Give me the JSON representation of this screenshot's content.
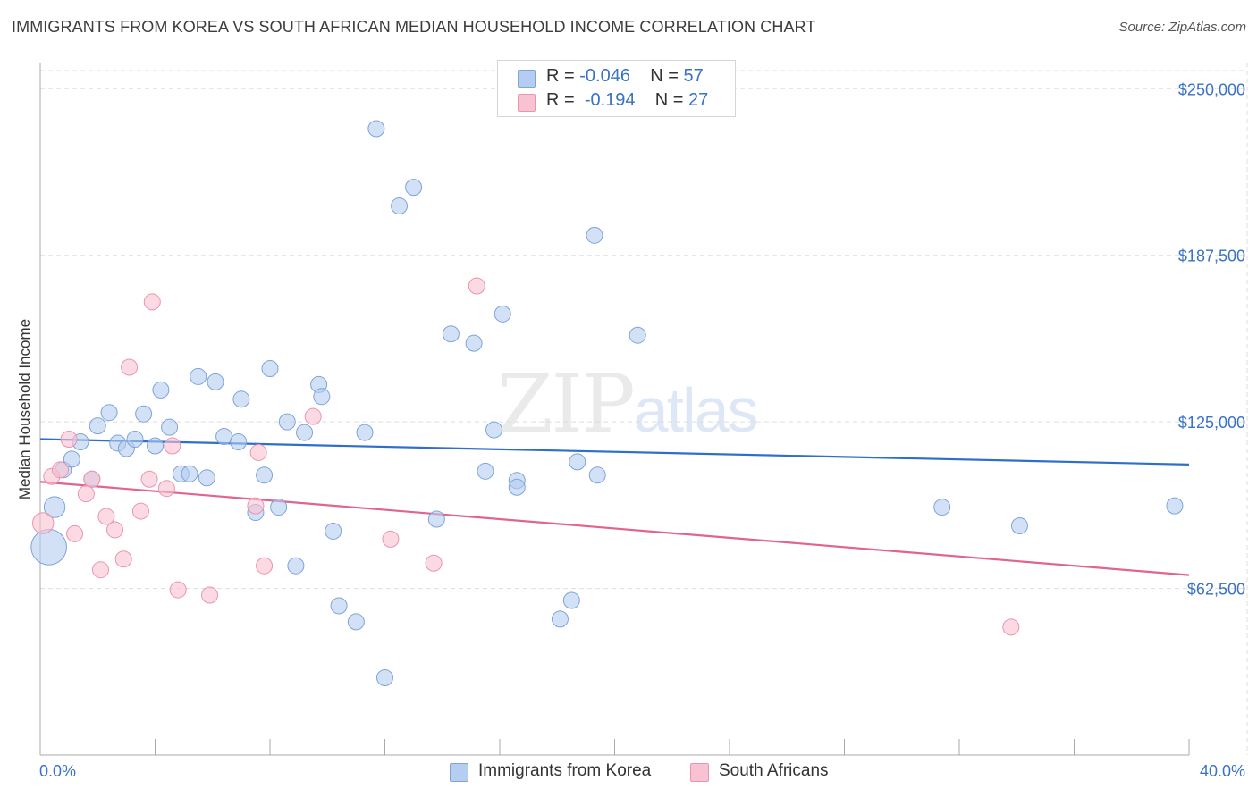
{
  "title": "IMMIGRANTS FROM KOREA VS SOUTH AFRICAN MEDIAN HOUSEHOLD INCOME CORRELATION CHART",
  "source": "Source: ZipAtlas.com",
  "watermark": {
    "zip": "ZIP",
    "atlas": "atlas"
  },
  "legend_top": {
    "rows": [
      {
        "r_label": "R =",
        "r_value": "-0.046",
        "n_label": "N =",
        "n_value": "57"
      },
      {
        "r_label": "R =",
        "r_value": "-0.194",
        "n_label": "N =",
        "n_value": "27"
      }
    ]
  },
  "legend_bottom": {
    "series1": "Immigrants from Korea",
    "series2": "South Africans"
  },
  "colors": {
    "korea_fill": "#b4cdf0",
    "korea_stroke": "#7ea4d8",
    "korea_line": "#2e6fcb",
    "sa_fill": "#f8c2d2",
    "sa_stroke": "#eb94ae",
    "sa_line": "#e0648d",
    "tick_label": "#3a72c4",
    "grid": "#dddddd"
  },
  "chart_data": {
    "type": "scatter",
    "title": "IMMIGRANTS FROM KOREA VS SOUTH AFRICAN MEDIAN HOUSEHOLD INCOME CORRELATION CHART",
    "xlabel": "",
    "ylabel": "Median Household Income",
    "xlim": [
      0,
      40
    ],
    "ylim": [
      0,
      262500
    ],
    "x_tick_labels": [
      "0.0%",
      "40.0%"
    ],
    "y_ticks": [
      62500,
      125000,
      187500,
      250000
    ],
    "y_tick_labels": [
      "$62,500",
      "$125,000",
      "$187,500",
      "$250,000"
    ],
    "grid": true,
    "legend_placement": "bottom",
    "series": [
      {
        "name": "Immigrants from Korea",
        "trend": {
          "x": [
            0,
            40
          ],
          "y": [
            118500,
            109000
          ]
        },
        "points": [
          {
            "x": 0.3,
            "y": 78000,
            "s": 2.2
          },
          {
            "x": 0.5,
            "y": 93000,
            "s": 1.3
          },
          {
            "x": 0.8,
            "y": 107000,
            "s": 1
          },
          {
            "x": 1.1,
            "y": 111000,
            "s": 1
          },
          {
            "x": 1.4,
            "y": 117500,
            "s": 1
          },
          {
            "x": 2.0,
            "y": 123500,
            "s": 1
          },
          {
            "x": 2.4,
            "y": 128500,
            "s": 1
          },
          {
            "x": 1.8,
            "y": 103500,
            "s": 1
          },
          {
            "x": 2.7,
            "y": 117000,
            "s": 1
          },
          {
            "x": 3.0,
            "y": 115000,
            "s": 1
          },
          {
            "x": 3.3,
            "y": 118500,
            "s": 1
          },
          {
            "x": 3.6,
            "y": 128000,
            "s": 1
          },
          {
            "x": 4.0,
            "y": 116000,
            "s": 1
          },
          {
            "x": 4.2,
            "y": 137000,
            "s": 1
          },
          {
            "x": 4.5,
            "y": 123000,
            "s": 1
          },
          {
            "x": 4.9,
            "y": 105500,
            "s": 1
          },
          {
            "x": 5.2,
            "y": 105500,
            "s": 1
          },
          {
            "x": 5.5,
            "y": 142000,
            "s": 1
          },
          {
            "x": 5.8,
            "y": 104000,
            "s": 1
          },
          {
            "x": 6.1,
            "y": 140000,
            "s": 1
          },
          {
            "x": 6.4,
            "y": 119500,
            "s": 1
          },
          {
            "x": 6.9,
            "y": 117500,
            "s": 1
          },
          {
            "x": 7.0,
            "y": 133500,
            "s": 1
          },
          {
            "x": 7.5,
            "y": 91000,
            "s": 1
          },
          {
            "x": 7.8,
            "y": 105000,
            "s": 1
          },
          {
            "x": 8.0,
            "y": 145000,
            "s": 1
          },
          {
            "x": 8.3,
            "y": 93000,
            "s": 1
          },
          {
            "x": 8.6,
            "y": 125000,
            "s": 1
          },
          {
            "x": 8.9,
            "y": 71000,
            "s": 1
          },
          {
            "x": 9.2,
            "y": 121000,
            "s": 1
          },
          {
            "x": 9.7,
            "y": 139000,
            "s": 1
          },
          {
            "x": 9.8,
            "y": 134500,
            "s": 1
          },
          {
            "x": 10.2,
            "y": 84000,
            "s": 1
          },
          {
            "x": 10.4,
            "y": 56000,
            "s": 1
          },
          {
            "x": 11.0,
            "y": 50000,
            "s": 1
          },
          {
            "x": 11.3,
            "y": 121000,
            "s": 1
          },
          {
            "x": 11.7,
            "y": 235000,
            "s": 1
          },
          {
            "x": 12.0,
            "y": 29000,
            "s": 1
          },
          {
            "x": 12.5,
            "y": 206000,
            "s": 1
          },
          {
            "x": 13.0,
            "y": 213000,
            "s": 1
          },
          {
            "x": 13.8,
            "y": 88500,
            "s": 1
          },
          {
            "x": 14.3,
            "y": 158000,
            "s": 1
          },
          {
            "x": 15.1,
            "y": 154500,
            "s": 1
          },
          {
            "x": 15.5,
            "y": 106500,
            "s": 1
          },
          {
            "x": 15.8,
            "y": 122000,
            "s": 1
          },
          {
            "x": 16.1,
            "y": 165500,
            "s": 1
          },
          {
            "x": 16.6,
            "y": 103000,
            "s": 1
          },
          {
            "x": 16.6,
            "y": 100500,
            "s": 1
          },
          {
            "x": 18.1,
            "y": 51000,
            "s": 1
          },
          {
            "x": 18.5,
            "y": 58000,
            "s": 1
          },
          {
            "x": 18.7,
            "y": 110000,
            "s": 1
          },
          {
            "x": 19.3,
            "y": 195000,
            "s": 1
          },
          {
            "x": 19.4,
            "y": 105000,
            "s": 1
          },
          {
            "x": 20.8,
            "y": 157500,
            "s": 1
          },
          {
            "x": 31.4,
            "y": 93000,
            "s": 1
          },
          {
            "x": 34.1,
            "y": 86000,
            "s": 1
          },
          {
            "x": 39.5,
            "y": 93500,
            "s": 1
          }
        ]
      },
      {
        "name": "South Africans",
        "trend": {
          "x": [
            0,
            40
          ],
          "y": [
            102500,
            67500
          ]
        },
        "points": [
          {
            "x": 0.1,
            "y": 87000,
            "s": 1.3
          },
          {
            "x": 0.4,
            "y": 104500,
            "s": 1
          },
          {
            "x": 0.7,
            "y": 107000,
            "s": 1
          },
          {
            "x": 1.0,
            "y": 118500,
            "s": 1
          },
          {
            "x": 1.2,
            "y": 83000,
            "s": 1
          },
          {
            "x": 1.6,
            "y": 98000,
            "s": 1
          },
          {
            "x": 1.8,
            "y": 103500,
            "s": 1
          },
          {
            "x": 2.1,
            "y": 69500,
            "s": 1
          },
          {
            "x": 2.3,
            "y": 89500,
            "s": 1
          },
          {
            "x": 2.6,
            "y": 84500,
            "s": 1
          },
          {
            "x": 2.9,
            "y": 73500,
            "s": 1
          },
          {
            "x": 3.1,
            "y": 145500,
            "s": 1
          },
          {
            "x": 3.5,
            "y": 91500,
            "s": 1
          },
          {
            "x": 3.8,
            "y": 103500,
            "s": 1
          },
          {
            "x": 3.9,
            "y": 170000,
            "s": 1
          },
          {
            "x": 4.4,
            "y": 100000,
            "s": 1
          },
          {
            "x": 4.6,
            "y": 116000,
            "s": 1
          },
          {
            "x": 4.8,
            "y": 62000,
            "s": 1
          },
          {
            "x": 5.9,
            "y": 60000,
            "s": 1
          },
          {
            "x": 7.5,
            "y": 93500,
            "s": 1
          },
          {
            "x": 7.6,
            "y": 113500,
            "s": 1
          },
          {
            "x": 7.8,
            "y": 71000,
            "s": 1
          },
          {
            "x": 9.5,
            "y": 127000,
            "s": 1
          },
          {
            "x": 12.2,
            "y": 81000,
            "s": 1
          },
          {
            "x": 13.7,
            "y": 72000,
            "s": 1
          },
          {
            "x": 15.2,
            "y": 176000,
            "s": 1
          },
          {
            "x": 33.8,
            "y": 48000,
            "s": 1
          }
        ]
      }
    ]
  }
}
